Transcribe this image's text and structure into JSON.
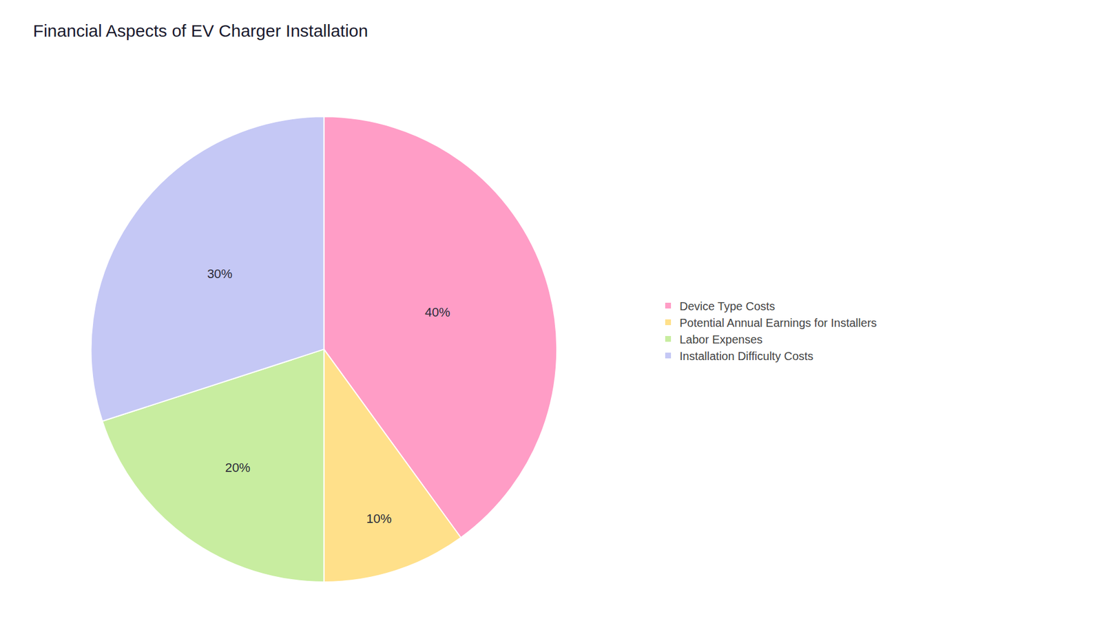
{
  "chart_data": {
    "type": "pie",
    "title": "Financial Aspects of EV Charger Installation",
    "categories": [
      "Device Type Costs",
      "Potential Annual Earnings for Installers",
      "Labor Expenses",
      "Installation Difficulty Costs"
    ],
    "values": [
      40,
      10,
      20,
      30
    ],
    "value_labels": [
      "40%",
      "10%",
      "20%",
      "30%"
    ],
    "colors": [
      "#FF9DC6",
      "#FFE08A",
      "#C8EDA0",
      "#C5C8F5"
    ],
    "data_labels": true,
    "legend": "right"
  }
}
